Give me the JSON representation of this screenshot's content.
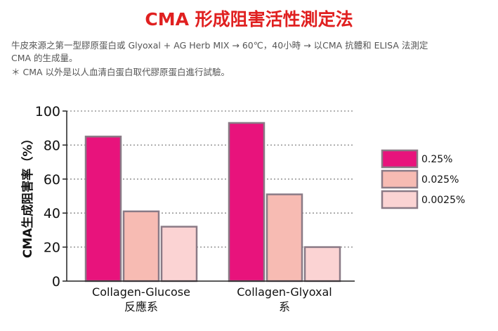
{
  "page": {
    "title": "CMA 形成阻害活性測定法",
    "description_line1": "牛皮來源之第一型膠原蛋白或 Glyoxal + AG Herb MIX → 60℃，40小時 → 以CMA 抗體和 ELISA 法測定",
    "description_line2": "CMA 的生成量。",
    "note": "＊ CMA 以外是以人血清白蛋白取代膠原蛋白進行試驗。"
  },
  "colors": {
    "title": "#e02020",
    "bar_outline": "#8a7a86",
    "series": [
      "#e8137c",
      "#f7bbb3",
      "#fbd3d3"
    ]
  },
  "chart_data": {
    "type": "bar",
    "categories": [
      {
        "line1": "Collagen-Glucose",
        "line2": "反應系"
      },
      {
        "line1": "Collagen-Glyoxal",
        "line2": "系"
      }
    ],
    "series": [
      {
        "name": "0.25%",
        "values": [
          85,
          93
        ]
      },
      {
        "name": "0.025%",
        "values": [
          41,
          51
        ]
      },
      {
        "name": "0.0025%",
        "values": [
          32,
          20
        ]
      }
    ],
    "ylabel": "CMA生成阻害率（%）",
    "ylim": [
      0,
      100
    ],
    "yticks": [
      0,
      20,
      40,
      60,
      80,
      100
    ],
    "grid": "dotted horizontal at 20, 40, 60, 80",
    "legend_position": "right"
  }
}
